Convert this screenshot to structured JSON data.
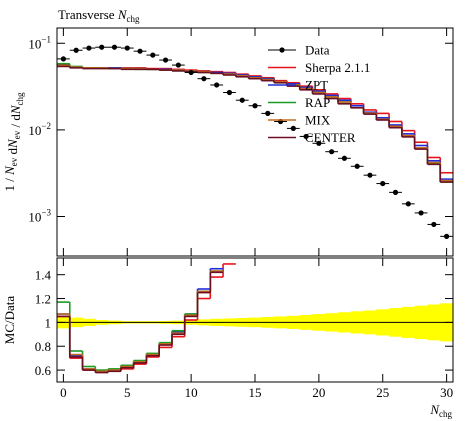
{
  "chart_data": [
    {
      "type": "step",
      "log_y": true,
      "title": [
        {
          "text": "Transverse "
        },
        {
          "italic": "N"
        },
        {
          "sub": "chg"
        }
      ],
      "ylabel": [
        {
          "text": "1 / "
        },
        {
          "italic": "N"
        },
        {
          "sub": "ev"
        },
        {
          "text": " d"
        },
        {
          "italic": "N"
        },
        {
          "sub": "ev"
        },
        {
          "text": " / d"
        },
        {
          "italic": "N"
        },
        {
          "sub": "chg"
        }
      ],
      "x": [
        0,
        1,
        2,
        3,
        4,
        5,
        6,
        7,
        8,
        9,
        10,
        11,
        12,
        13,
        14,
        15,
        16,
        17,
        18,
        19,
        20,
        21,
        22,
        23,
        24,
        25,
        26,
        27,
        28,
        29,
        30
      ],
      "xlim": [
        -0.5,
        30.5
      ],
      "ylim": [
        0.00035,
        0.15
      ],
      "yticks": [
        {
          "value": 0.1,
          "label": {
            "base": "10",
            "exp": "−1"
          }
        },
        {
          "value": 0.01,
          "label": {
            "base": "10",
            "exp": "−2"
          }
        },
        {
          "value": 0.001,
          "label": {
            "base": "10",
            "exp": "−3"
          }
        }
      ],
      "series": [
        {
          "name": "Sherpa 2.1.1",
          "color": "#e8141c",
          "values": [
            0.056,
            0.053,
            0.052,
            0.052,
            0.052,
            0.052,
            0.052,
            0.051,
            0.051,
            0.05,
            0.049,
            0.048,
            0.047,
            0.046,
            0.044,
            0.042,
            0.04,
            0.037,
            0.035,
            0.032,
            0.029,
            0.026,
            0.023,
            0.02,
            0.017,
            0.0155,
            0.0125,
            0.0098,
            0.0072,
            0.0048,
            0.0032
          ]
        },
        {
          "name": "ZPT",
          "color": "#1f2fd8",
          "values": [
            0.055,
            0.053,
            0.052,
            0.052,
            0.052,
            0.051,
            0.051,
            0.05,
            0.05,
            0.049,
            0.048,
            0.047,
            0.046,
            0.045,
            0.043,
            0.041,
            0.039,
            0.036,
            0.034,
            0.031,
            0.028,
            0.025,
            0.022,
            0.019,
            0.016,
            0.0138,
            0.0114,
            0.009,
            0.0066,
            0.0044,
            0.0027
          ]
        },
        {
          "name": "RAP",
          "color": "#1c9a24",
          "values": [
            0.058,
            0.054,
            0.052,
            0.052,
            0.051,
            0.051,
            0.05,
            0.05,
            0.049,
            0.048,
            0.047,
            0.046,
            0.045,
            0.044,
            0.042,
            0.04,
            0.038,
            0.035,
            0.033,
            0.03,
            0.027,
            0.024,
            0.021,
            0.018,
            0.0155,
            0.0132,
            0.0108,
            0.0084,
            0.0061,
            0.0041,
            0.0025
          ]
        },
        {
          "name": "MIX",
          "color": "#c46a1e",
          "values": [
            0.055,
            0.053,
            0.052,
            0.052,
            0.051,
            0.051,
            0.051,
            0.05,
            0.049,
            0.049,
            0.048,
            0.047,
            0.045,
            0.044,
            0.042,
            0.04,
            0.038,
            0.036,
            0.033,
            0.03,
            0.027,
            0.024,
            0.021,
            0.018,
            0.0156,
            0.0133,
            0.011,
            0.0086,
            0.0062,
            0.0042,
            0.0026
          ]
        },
        {
          "name": "CENTER",
          "color": "#6a0f24",
          "values": [
            0.054,
            0.052,
            0.051,
            0.051,
            0.051,
            0.05,
            0.05,
            0.05,
            0.049,
            0.048,
            0.047,
            0.046,
            0.045,
            0.043,
            0.041,
            0.039,
            0.037,
            0.035,
            0.032,
            0.029,
            0.026,
            0.023,
            0.02,
            0.018,
            0.0152,
            0.013,
            0.0106,
            0.0083,
            0.006,
            0.004,
            0.0025
          ]
        },
        {
          "name": "Data",
          "color": "#000000",
          "marker": "circle",
          "values": [
            0.066,
            0.083,
            0.088,
            0.09,
            0.09,
            0.088,
            0.081,
            0.073,
            0.064,
            0.056,
            0.046,
            0.039,
            0.033,
            0.027,
            0.022,
            0.019,
            0.0155,
            0.0125,
            0.0104,
            0.0084,
            0.007,
            0.0056,
            0.0047,
            0.0038,
            0.003,
            0.0024,
            0.0019,
            0.0014,
            0.0011,
            0.00081,
            0.00059
          ]
        }
      ]
    },
    {
      "type": "step",
      "ylabel": [
        {
          "text": "MC/Data"
        }
      ],
      "xlabel": [
        {
          "italic": "N"
        },
        {
          "sub": "chg"
        }
      ],
      "x": [
        0,
        1,
        2,
        3,
        4,
        5,
        6,
        7,
        8,
        9,
        10,
        11,
        12,
        13,
        14,
        15,
        16,
        17,
        18,
        19,
        20,
        21,
        22,
        23,
        24,
        25,
        26,
        27,
        28,
        29,
        30
      ],
      "xlim": [
        -0.5,
        30.5
      ],
      "xticks": [
        0,
        5,
        10,
        15,
        20,
        25,
        30
      ],
      "ylim": [
        0.5,
        1.54
      ],
      "yticks": [
        0.6,
        0.8,
        1,
        1.2,
        1.4
      ],
      "reference": 1,
      "band": {
        "color": "#ffff00",
        "values": [
          0.05,
          0.04,
          0.03,
          0.02,
          0.015,
          0.01,
          0.01,
          0.01,
          0.012,
          0.015,
          0.02,
          0.025,
          0.03,
          0.033,
          0.037,
          0.04,
          0.045,
          0.05,
          0.055,
          0.062,
          0.07,
          0.077,
          0.085,
          0.093,
          0.1,
          0.11,
          0.12,
          0.13,
          0.14,
          0.15,
          0.16
        ]
      },
      "series": [
        {
          "name": "Sherpa 2.1.1",
          "color": "#e8141c",
          "values": [
            1.05,
            0.7,
            0.6,
            0.58,
            0.59,
            0.61,
            0.65,
            0.71,
            0.79,
            0.88,
            1.02,
            1.2,
            1.38,
            1.49,
            null,
            null,
            null,
            null,
            null,
            null,
            null,
            null,
            null,
            null,
            null,
            null,
            null,
            null,
            null,
            null,
            null
          ]
        },
        {
          "name": "ZPT",
          "color": "#1f2fd8",
          "values": [
            1.07,
            0.72,
            0.61,
            0.59,
            0.6,
            0.63,
            0.67,
            0.73,
            0.82,
            0.92,
            1.07,
            1.28,
            1.45,
            null,
            null,
            null,
            null,
            null,
            null,
            null,
            null,
            null,
            null,
            null,
            null,
            null,
            null,
            null,
            null,
            null,
            null
          ]
        },
        {
          "name": "RAP",
          "color": "#1c9a24",
          "values": [
            1.17,
            0.76,
            0.63,
            0.6,
            0.61,
            0.64,
            0.68,
            0.74,
            0.83,
            0.93,
            1.07,
            1.26,
            1.43,
            null,
            null,
            null,
            null,
            null,
            null,
            null,
            null,
            null,
            null,
            null,
            null,
            null,
            null,
            null,
            null,
            null,
            null
          ]
        },
        {
          "name": "MIX",
          "color": "#c46a1e",
          "values": [
            1.07,
            0.73,
            0.61,
            0.59,
            0.6,
            0.63,
            0.67,
            0.73,
            0.82,
            0.91,
            1.06,
            1.26,
            1.43,
            null,
            null,
            null,
            null,
            null,
            null,
            null,
            null,
            null,
            null,
            null,
            null,
            null,
            null,
            null,
            null,
            null,
            null
          ]
        },
        {
          "name": "CENTER",
          "color": "#6a0f24",
          "values": [
            1.05,
            0.71,
            0.6,
            0.58,
            0.59,
            0.62,
            0.66,
            0.72,
            0.81,
            0.9,
            1.05,
            1.25,
            1.42,
            null,
            null,
            null,
            null,
            null,
            null,
            null,
            null,
            null,
            null,
            null,
            null,
            null,
            null,
            null,
            null,
            null,
            null
          ]
        }
      ]
    }
  ]
}
